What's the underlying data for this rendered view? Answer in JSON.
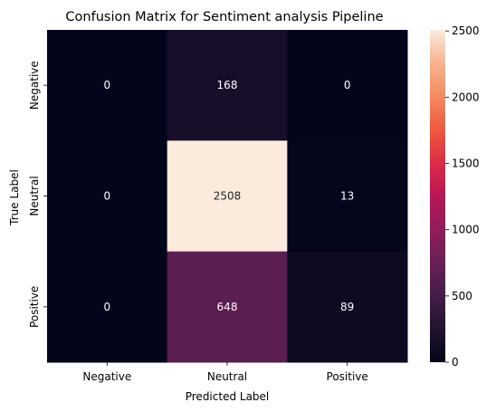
{
  "chart_data": {
    "type": "heatmap",
    "title": "Confusion Matrix for Sentiment analysis Pipeline",
    "xlabel": "Predicted Label",
    "ylabel": "True Label",
    "x_categories": [
      "Negative",
      "Neutral",
      "Positive"
    ],
    "y_categories": [
      "Negative",
      "Neutral",
      "Positive"
    ],
    "values": [
      [
        0,
        168,
        0
      ],
      [
        0,
        2508,
        13
      ],
      [
        0,
        648,
        89
      ]
    ],
    "colorbar": {
      "range": [
        0,
        2508
      ],
      "ticks": [
        0,
        500,
        1000,
        1500,
        2000,
        2500
      ],
      "colormap": "rocket"
    },
    "annotation_color_dark": "#ffffff",
    "annotation_color_light": "#262626"
  }
}
